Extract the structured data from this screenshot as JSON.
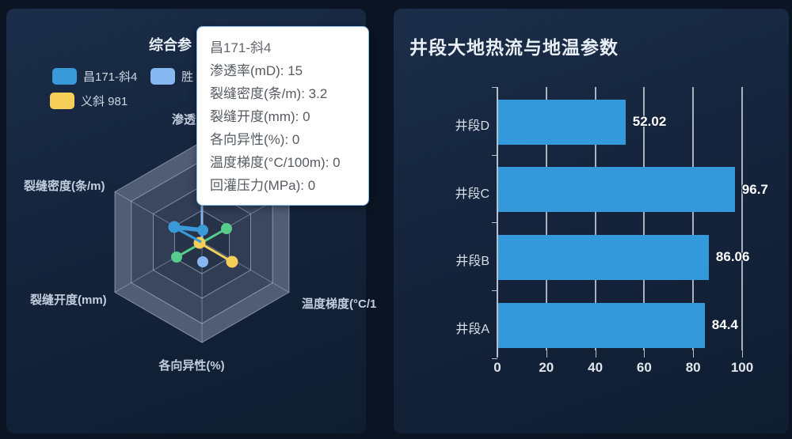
{
  "page": {
    "background": "#0a1422"
  },
  "left_panel": {
    "title": "综合参",
    "legend": [
      {
        "label": "昌171-斜4",
        "color": "#3a99d9"
      },
      {
        "label": "胜",
        "color": "#86b7f1"
      },
      {
        "label": "义斜 981",
        "color": "#f6cf59"
      }
    ],
    "radar_axis_labels": [
      "渗透",
      "裂缝密度(条/m)",
      "裂缝开度(mm)",
      "各向异性(%)",
      "温度梯度(°C/1"
    ]
  },
  "tooltip": {
    "title": "昌171-斜4",
    "items": [
      "渗透率(mD): 15",
      "裂缝密度(条/m): 3.2",
      "裂缝开度(mm): 0",
      "各向异性(%): 0",
      "温度梯度(°C/100m): 0",
      "回灌压力(MPa): 0"
    ]
  },
  "right_panel": {
    "title": "井段大地热流与地温参数"
  },
  "chart_data": [
    {
      "type": "radar",
      "title_fragment": "综合参",
      "indicators": [
        "渗透率(mD)",
        "裂缝密度(条/m)",
        "裂缝开度(mm)",
        "各向异性(%)",
        "温度梯度(°C/100m)",
        "回灌压力(MPa)"
      ],
      "visible_series": [
        "昌171-斜4",
        "胜",
        "义斜 981"
      ],
      "series_colors": {
        "昌171-斜4": "#3a99d9",
        "胜": "#86b7f1",
        "义斜 981": "#f6cf59",
        "unnamed-green": "#58cc8c"
      },
      "hovered_series": {
        "name": "昌171-斜4",
        "values": {
          "渗透率(mD)": 15,
          "裂缝密度(条/m)": 3.2,
          "裂缝开度(mm)": 0,
          "各向异性(%)": 0,
          "温度梯度(°C/100m)": 0,
          "回灌压力(MPa)": 0
        }
      },
      "legend_position": "top-left",
      "grid": "hexagonal, 4 split levels, shaded split areas"
    },
    {
      "type": "bar",
      "orientation": "horizontal",
      "title": "井段大地热流与地温参数",
      "categories": [
        "井段D",
        "井段C",
        "井段B",
        "井段A"
      ],
      "values": [
        52.02,
        96.7,
        86.06,
        84.4
      ],
      "value_labels": [
        "52.02",
        "96.7",
        "86.06",
        "84.4"
      ],
      "xlim": [
        0,
        100
      ],
      "xticks": [
        0,
        20,
        40,
        60,
        80,
        100
      ],
      "bar_color": "#3499db",
      "grid": true,
      "ylabel": "",
      "xlabel": ""
    }
  ]
}
